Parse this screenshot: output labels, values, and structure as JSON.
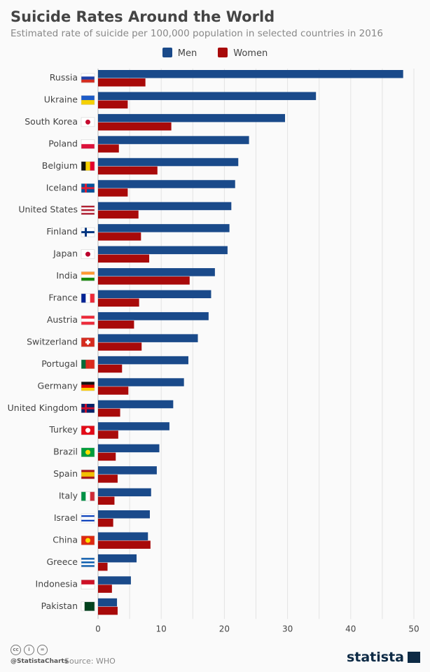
{
  "header": {
    "title": "Suicide Rates Around the World",
    "subtitle": "Estimated rate of suicide per 100,000 population in selected countries in 2016"
  },
  "footer": {
    "handle": "@StatistaCharts",
    "source": "Source: WHO",
    "logo": "statista"
  },
  "colors": {
    "men": "#1a4a8a",
    "women": "#a80a0a",
    "grid": "#e3e3e3"
  },
  "chart_data": {
    "type": "bar",
    "orientation": "horizontal",
    "title": "Suicide Rates Around the World",
    "xlim": [
      0,
      50
    ],
    "xticks": [
      0,
      10,
      20,
      30,
      40,
      50
    ],
    "grid": true,
    "legend": "top",
    "categories": [
      "Russia",
      "Ukraine",
      "South Korea",
      "Poland",
      "Belgium",
      "Iceland",
      "United States",
      "Finland",
      "Japan",
      "India",
      "France",
      "Austria",
      "Switzerland",
      "Portugal",
      "Germany",
      "United Kingdom",
      "Turkey",
      "Brazil",
      "Spain",
      "Italy",
      "Israel",
      "China",
      "Greece",
      "Indonesia",
      "Pakistan"
    ],
    "series": [
      {
        "name": "Men",
        "values": [
          48.3,
          34.5,
          29.6,
          23.9,
          22.2,
          21.7,
          21.1,
          20.8,
          20.5,
          18.5,
          17.9,
          17.5,
          15.8,
          14.3,
          13.6,
          11.9,
          11.3,
          9.7,
          9.3,
          8.4,
          8.2,
          7.9,
          6.1,
          5.2,
          3.0
        ]
      },
      {
        "name": "Women",
        "values": [
          7.5,
          4.7,
          11.6,
          3.3,
          9.4,
          4.7,
          6.4,
          6.8,
          8.1,
          14.5,
          6.5,
          5.7,
          6.9,
          3.8,
          4.8,
          3.5,
          3.2,
          2.8,
          3.1,
          2.6,
          2.4,
          8.3,
          1.5,
          2.2,
          3.1
        ]
      }
    ]
  },
  "flags": [
    {
      "dir": "h",
      "c": [
        "#fff",
        "#1c3fa8",
        "#d52b1e"
      ]
    },
    {
      "dir": "h",
      "c": [
        "#1c5bc7",
        "#f5d000"
      ]
    },
    {
      "dir": "h",
      "c": [
        "#fff"
      ],
      "dot": "#c60c30"
    },
    {
      "dir": "h",
      "c": [
        "#fff",
        "#dc143c"
      ]
    },
    {
      "dir": "v",
      "c": [
        "#111",
        "#f5d000",
        "#e4002b"
      ]
    },
    {
      "dir": "h",
      "c": [
        "#02529c"
      ],
      "cross": "#dc1e35"
    },
    {
      "dir": "h",
      "c": [
        "#b22234",
        "#fff",
        "#b22234",
        "#fff",
        "#b22234"
      ]
    },
    {
      "dir": "h",
      "c": [
        "#fff"
      ],
      "cross": "#003580"
    },
    {
      "dir": "h",
      "c": [
        "#fff"
      ],
      "dot": "#bc002d"
    },
    {
      "dir": "h",
      "c": [
        "#ff9933",
        "#fff",
        "#138808"
      ]
    },
    {
      "dir": "v",
      "c": [
        "#002395",
        "#fff",
        "#ed2939"
      ]
    },
    {
      "dir": "h",
      "c": [
        "#ed2939",
        "#fff",
        "#ed2939"
      ]
    },
    {
      "dir": "h",
      "c": [
        "#d52b1e"
      ],
      "plus": "#fff"
    },
    {
      "dir": "v",
      "c": [
        "#046a38",
        "#da291c",
        "#da291c"
      ]
    },
    {
      "dir": "h",
      "c": [
        "#111",
        "#dd0000",
        "#ffce00"
      ]
    },
    {
      "dir": "h",
      "c": [
        "#012169"
      ],
      "cross": "#c8102e"
    },
    {
      "dir": "h",
      "c": [
        "#e30a17"
      ],
      "dot": "#fff"
    },
    {
      "dir": "h",
      "c": [
        "#009c3b"
      ],
      "dot": "#ffdf00"
    },
    {
      "dir": "h",
      "c": [
        "#aa151b",
        "#f1bf00",
        "#f1bf00",
        "#aa151b"
      ]
    },
    {
      "dir": "v",
      "c": [
        "#009246",
        "#fff",
        "#ce2b37"
      ]
    },
    {
      "dir": "h",
      "c": [
        "#fff",
        "#0038b8",
        "#fff",
        "#fff",
        "#0038b8",
        "#fff"
      ]
    },
    {
      "dir": "h",
      "c": [
        "#de2910"
      ],
      "dot": "#ffde00"
    },
    {
      "dir": "h",
      "c": [
        "#0d5eaf",
        "#fff",
        "#0d5eaf",
        "#fff",
        "#0d5eaf"
      ]
    },
    {
      "dir": "h",
      "c": [
        "#ce1126",
        "#fff"
      ]
    },
    {
      "dir": "v",
      "c": [
        "#fff",
        "#01411c",
        "#01411c",
        "#01411c"
      ]
    }
  ]
}
